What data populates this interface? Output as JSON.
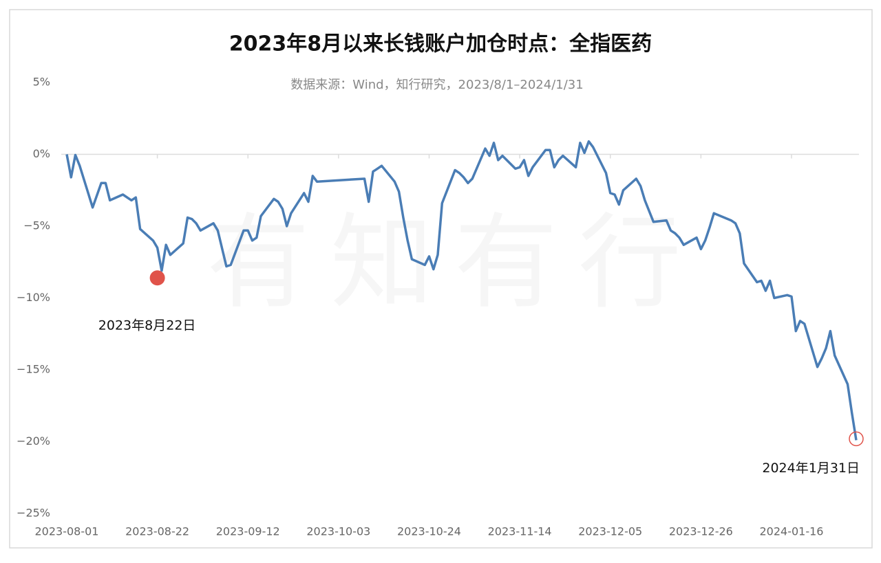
{
  "chart_data": {
    "type": "line",
    "title": "2023年8月以来长钱账户加仓时点：全指医药",
    "subtitle": "数据来源：Wind，知行研究，2023/8/1–2024/1/31",
    "watermark": "有知有行",
    "color": "#4a7db5",
    "x": [
      "2023-08-01",
      "2023-08-02",
      "2023-08-03",
      "2023-08-04",
      "2023-08-07",
      "2023-08-09",
      "2023-08-10",
      "2023-08-11",
      "2023-08-14",
      "2023-08-16",
      "2023-08-17",
      "2023-08-18",
      "2023-08-21",
      "2023-08-22",
      "2023-08-23",
      "2023-08-24",
      "2023-08-25",
      "2023-08-28",
      "2023-08-29",
      "2023-08-30",
      "2023-08-31",
      "2023-09-01",
      "2023-09-04",
      "2023-09-05",
      "2023-09-07",
      "2023-09-08",
      "2023-09-11",
      "2023-09-12",
      "2023-09-13",
      "2023-09-14",
      "2023-09-15",
      "2023-09-18",
      "2023-09-19",
      "2023-09-20",
      "2023-09-21",
      "2023-09-22",
      "2023-09-25",
      "2023-09-26",
      "2023-09-27",
      "2023-09-28",
      "2023-10-09",
      "2023-10-10",
      "2023-10-11",
      "2023-10-12",
      "2023-10-13",
      "2023-10-16",
      "2023-10-17",
      "2023-10-18",
      "2023-10-19",
      "2023-10-20",
      "2023-10-23",
      "2023-10-24",
      "2023-10-25",
      "2023-10-26",
      "2023-10-27",
      "2023-10-30",
      "2023-10-31",
      "2023-11-01",
      "2023-11-02",
      "2023-11-03",
      "2023-11-06",
      "2023-11-07",
      "2023-11-08",
      "2023-11-09",
      "2023-11-10",
      "2023-11-13",
      "2023-11-14",
      "2023-11-15",
      "2023-11-16",
      "2023-11-17",
      "2023-11-20",
      "2023-11-21",
      "2023-11-22",
      "2023-11-23",
      "2023-11-24",
      "2023-11-27",
      "2023-11-28",
      "2023-11-29",
      "2023-11-30",
      "2023-12-01",
      "2023-12-04",
      "2023-12-05",
      "2023-12-06",
      "2023-12-07",
      "2023-12-08",
      "2023-12-11",
      "2023-12-12",
      "2023-12-13",
      "2023-12-15",
      "2023-12-18",
      "2023-12-19",
      "2023-12-20",
      "2023-12-21",
      "2023-12-22",
      "2023-12-25",
      "2023-12-26",
      "2023-12-27",
      "2023-12-28",
      "2023-12-29",
      "2024-01-02",
      "2024-01-03",
      "2024-01-04",
      "2024-01-05",
      "2024-01-08",
      "2024-01-09",
      "2024-01-10",
      "2024-01-11",
      "2024-01-12",
      "2024-01-15",
      "2024-01-16",
      "2024-01-17",
      "2024-01-18",
      "2024-01-19",
      "2024-01-22",
      "2024-01-23",
      "2024-01-24",
      "2024-01-25",
      "2024-01-26",
      "2024-01-29",
      "2024-01-30",
      "2024-01-31"
    ],
    "values": [
      0,
      -1.6,
      -0.05,
      -0.8,
      -3.7,
      -2.0,
      -2.0,
      -3.2,
      -2.8,
      -3.2,
      -3.0,
      -5.2,
      -6.0,
      -6.5,
      -8.1,
      -6.3,
      -7.0,
      -6.2,
      -4.4,
      -4.5,
      -4.8,
      -5.3,
      -4.8,
      -5.3,
      -7.8,
      -7.7,
      -5.3,
      -5.3,
      -6.0,
      -5.8,
      -4.3,
      -3.1,
      -3.3,
      -3.8,
      -5.0,
      -4.1,
      -2.7,
      -3.3,
      -1.5,
      -1.9,
      -1.7,
      -3.3,
      -1.2,
      -1.0,
      -0.8,
      -1.9,
      -2.6,
      -4.4,
      -6.0,
      -7.3,
      -7.7,
      -7.1,
      -8.0,
      -7.0,
      -3.4,
      -1.1,
      -1.3,
      -1.6,
      -2.0,
      -1.7,
      0.4,
      -0.1,
      0.8,
      -0.4,
      -0.1,
      -1.0,
      -0.9,
      -0.4,
      -1.5,
      -0.9,
      0.3,
      0.3,
      -0.9,
      -0.4,
      -0.1,
      -0.9,
      0.8,
      0.1,
      0.9,
      0.5,
      -1.3,
      -2.7,
      -2.8,
      -3.5,
      -2.5,
      -1.7,
      -2.2,
      -3.2,
      -4.7,
      -4.6,
      -5.3,
      -5.5,
      -5.8,
      -6.3,
      -5.8,
      -6.6,
      -6.0,
      -5.1,
      -4.1,
      -4.6,
      -4.8,
      -5.5,
      -7.6,
      -8.9,
      -8.8,
      -9.5,
      -8.8,
      -10.0,
      -9.8,
      -9.9,
      -12.3,
      -11.6,
      -11.8,
      -14.8,
      -14.2,
      -13.5,
      -12.3,
      -14.0,
      -16.0,
      -18.0,
      -19.9
    ],
    "xlim": [
      "2023-08-01",
      "2024-01-31"
    ],
    "xticks": [
      "2023-08-01",
      "2023-08-22",
      "2023-09-12",
      "2023-10-03",
      "2023-10-24",
      "2023-11-14",
      "2023-12-05",
      "2023-12-26",
      "2024-01-16"
    ],
    "ylim": [
      -25,
      5
    ],
    "yticks": [
      {
        "value": 5,
        "label": "5%"
      },
      {
        "value": 0,
        "label": "0%"
      },
      {
        "value": -5,
        "label": "−5%"
      },
      {
        "value": -10,
        "label": "−10%"
      },
      {
        "value": -15,
        "label": "−15%"
      },
      {
        "value": -20,
        "label": "−20%"
      },
      {
        "value": -25,
        "label": "−25%"
      }
    ],
    "annotations": [
      {
        "text": "2023年8月22日",
        "x": "2023-08-22",
        "y": -8.6,
        "color": "#e0534a",
        "style": "filled"
      },
      {
        "text": "2024年1月31日",
        "x": "2024-01-31",
        "y": -19.8,
        "color": "#e0534a",
        "style": "ring"
      }
    ]
  }
}
